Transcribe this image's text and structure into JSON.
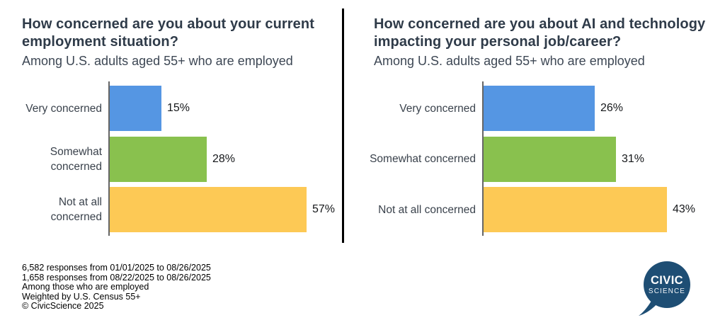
{
  "chart_data": [
    {
      "type": "bar",
      "orientation": "horizontal",
      "title": "How concerned are you about your current employment situation?",
      "title_display": "How concerned are you about your current\nemployment situation?",
      "subtitle": "Among U.S. adults aged 55+ who are employed",
      "categories": [
        "Very concerned",
        "Somewhat concerned",
        "Not at all concerned"
      ],
      "category_labels_display": [
        "Very concerned",
        "Somewhat\nconcerned",
        "Not at all\nconcerned"
      ],
      "values": [
        15,
        28,
        57
      ],
      "value_labels": [
        "15%",
        "28%",
        "57%"
      ],
      "unit": "%",
      "xlim": [
        0,
        70
      ],
      "bar_colors": [
        "#5596e3",
        "#89c14e",
        "#fdc955"
      ],
      "grid": false,
      "legend": "none"
    },
    {
      "type": "bar",
      "orientation": "horizontal",
      "title": "How concerned are you about AI and technology impacting your personal job/career?",
      "title_display": "How concerned are you about AI and technology\nimpacting your personal job/career?",
      "subtitle": "Among U.S. adults aged 55+ who are employed",
      "categories": [
        "Very concerned",
        "Somewhat concerned",
        "Not at all concerned"
      ],
      "category_labels_display": [
        "Very concerned",
        "Somewhat concerned",
        "Not at all concerned"
      ],
      "values": [
        26,
        31,
        43
      ],
      "value_labels": [
        "26%",
        "31%",
        "43%"
      ],
      "unit": "%",
      "xlim": [
        0,
        55
      ],
      "bar_colors": [
        "#5596e3",
        "#89c14e",
        "#fdc955"
      ],
      "grid": false,
      "legend": "none"
    }
  ],
  "footer": {
    "lines": [
      "6,582 responses from 01/01/2025 to 08/26/2025",
      "1,658 responses from 08/22/2025 to 08/26/2025",
      "Among those who are employed",
      "Weighted by U.S. Census 55+",
      "© CivicScience 2025"
    ]
  },
  "logo": {
    "line1": "CIVIC",
    "line2": "SCIENCE",
    "color": "#1e4e74"
  },
  "colors": {
    "title": "#2f3b49",
    "axis": "#666666",
    "divider": "#000000",
    "background": "#ffffff"
  }
}
